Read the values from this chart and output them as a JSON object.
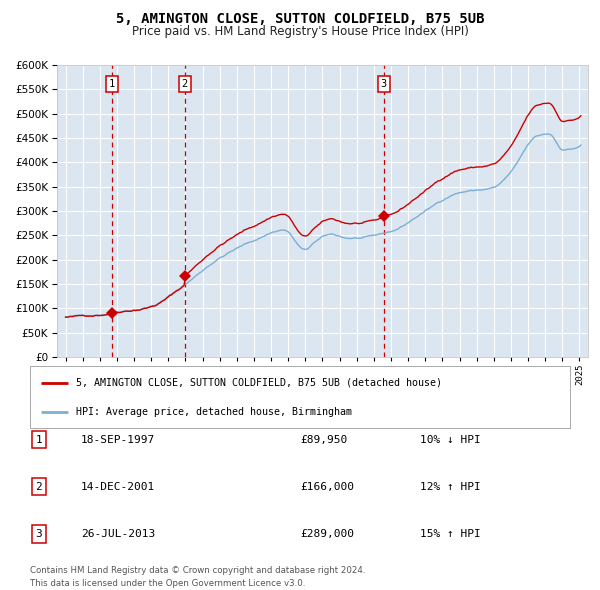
{
  "title": "5, AMINGTON CLOSE, SUTTON COLDFIELD, B75 5UB",
  "subtitle": "Price paid vs. HM Land Registry's House Price Index (HPI)",
  "legend_line1": "5, AMINGTON CLOSE, SUTTON COLDFIELD, B75 5UB (detached house)",
  "legend_line2": "HPI: Average price, detached house, Birmingham",
  "transactions": [
    {
      "label": "1",
      "date_str": "18-SEP-1997",
      "date_x": 1997.72,
      "price": 89950,
      "hpi_pct": "10% ↓ HPI"
    },
    {
      "label": "2",
      "date_str": "14-DEC-2001",
      "date_x": 2001.95,
      "price": 166000,
      "hpi_pct": "12% ↑ HPI"
    },
    {
      "label": "3",
      "date_str": "26-JUL-2013",
      "date_x": 2013.57,
      "price": 289000,
      "hpi_pct": "15% ↑ HPI"
    }
  ],
  "footer_line1": "Contains HM Land Registry data © Crown copyright and database right 2024.",
  "footer_line2": "This data is licensed under the Open Government Licence v3.0.",
  "red_color": "#cc0000",
  "blue_color": "#7bafd4",
  "bg_color": "#dce6f1",
  "grid_color": "#ffffff",
  "vline_color": "#cc0000",
  "marker_color": "#cc0000",
  "box_color": "#cc0000",
  "ylim": [
    0,
    600000
  ],
  "xlim": [
    1994.5,
    2025.5
  ],
  "hpi_anchors_x": [
    1995.0,
    1997.0,
    1998.0,
    2000.0,
    2002.0,
    2004.0,
    2006.0,
    2007.75,
    2009.0,
    2009.5,
    2010.5,
    2011.5,
    2012.5,
    2014.0,
    2016.0,
    2018.0,
    2020.0,
    2021.0,
    2022.5,
    2023.25,
    2024.0,
    2024.9
  ],
  "hpi_anchors_y": [
    82000,
    88000,
    96000,
    110000,
    155000,
    210000,
    245000,
    268000,
    225000,
    240000,
    255000,
    248000,
    248000,
    258000,
    300000,
    340000,
    350000,
    380000,
    450000,
    455000,
    425000,
    430000
  ]
}
